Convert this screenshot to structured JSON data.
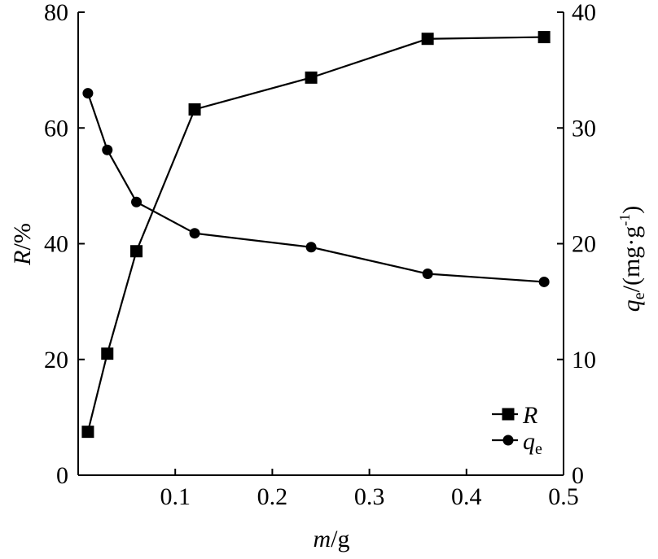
{
  "chart_data": {
    "type": "line",
    "xlabel": {
      "var": "m",
      "unit": "/g"
    },
    "ylabel_left": {
      "var": "R",
      "unit": "/%"
    },
    "ylabel_right": {
      "var": "q",
      "sub": "e",
      "unit": "/(mg·g",
      "sup": "-1",
      "close": ")"
    },
    "xlim": [
      0,
      0.5
    ],
    "ylim_left": [
      0,
      80
    ],
    "ylim_right": [
      0,
      40
    ],
    "x_ticks": [
      "0.1",
      "0.2",
      "0.3",
      "0.4",
      "0.5"
    ],
    "x_tick_values": [
      0.1,
      0.2,
      0.3,
      0.4,
      0.5
    ],
    "y_left_ticks": [
      "0",
      "20",
      "40",
      "60",
      "80"
    ],
    "y_left_tick_values": [
      0,
      20,
      40,
      60,
      80
    ],
    "y_right_ticks": [
      "0",
      "10",
      "20",
      "30",
      "40"
    ],
    "y_right_tick_values": [
      0,
      10,
      20,
      30,
      40
    ],
    "grid": false,
    "legend_position": "bottom-right",
    "series": [
      {
        "name": "R",
        "axis": "left",
        "marker": "square",
        "x": [
          0.01,
          0.03,
          0.06,
          0.12,
          0.24,
          0.36,
          0.48
        ],
        "y": [
          7.5,
          21.0,
          38.7,
          63.2,
          68.7,
          75.4,
          75.7
        ]
      },
      {
        "name": "qe",
        "legend_var": "q",
        "legend_sub": "e",
        "axis": "right",
        "marker": "circle",
        "x": [
          0.01,
          0.03,
          0.06,
          0.12,
          0.24,
          0.36,
          0.48
        ],
        "y": [
          33.0,
          28.1,
          23.6,
          20.9,
          19.7,
          17.4,
          16.7
        ]
      }
    ]
  }
}
